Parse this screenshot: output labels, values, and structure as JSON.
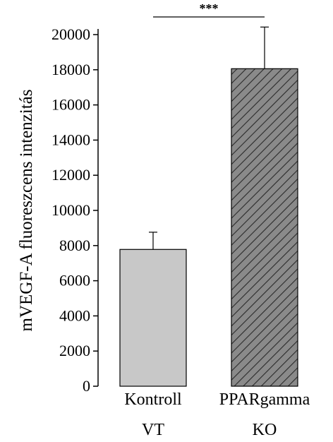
{
  "chart_data": {
    "type": "bar",
    "title": "",
    "xlabel": "",
    "ylabel": "mVEGF-A fluoreszcens intenzitás",
    "ylim": [
      0,
      20000
    ],
    "yticks": [
      "0",
      "2000",
      "4000",
      "6000",
      "8000",
      "10000",
      "12000",
      "14000",
      "16000",
      "18000",
      "20000"
    ],
    "categories": [
      {
        "line1": "Kontroll",
        "line2": "VT"
      },
      {
        "line1": "PPARgamma",
        "line2": "KO"
      }
    ],
    "values": [
      7780,
      18060
    ],
    "error_upper": [
      8760,
      20430
    ],
    "bar_colors": [
      "#c8c8c8",
      "#808080"
    ],
    "bar_patterns": [
      "solid",
      "diagonal-hatch"
    ],
    "significance": {
      "label": "***",
      "between": [
        0,
        1
      ]
    },
    "grid": false,
    "legend": "none"
  }
}
